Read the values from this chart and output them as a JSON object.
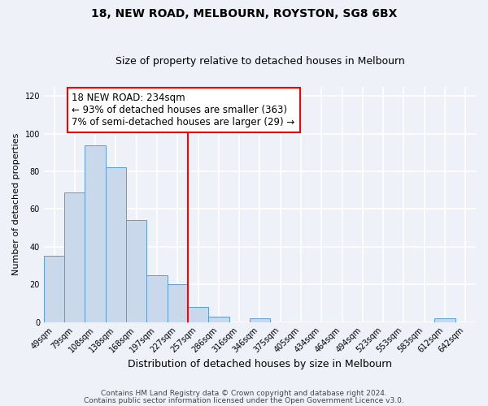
{
  "title": "18, NEW ROAD, MELBOURN, ROYSTON, SG8 6BX",
  "subtitle": "Size of property relative to detached houses in Melbourn",
  "xlabel": "Distribution of detached houses by size in Melbourn",
  "ylabel": "Number of detached properties",
  "bar_labels": [
    "49sqm",
    "79sqm",
    "108sqm",
    "138sqm",
    "168sqm",
    "197sqm",
    "227sqm",
    "257sqm",
    "286sqm",
    "316sqm",
    "346sqm",
    "375sqm",
    "405sqm",
    "434sqm",
    "464sqm",
    "494sqm",
    "523sqm",
    "553sqm",
    "583sqm",
    "612sqm",
    "642sqm"
  ],
  "bar_values": [
    35,
    69,
    94,
    82,
    54,
    25,
    20,
    8,
    3,
    0,
    2,
    0,
    0,
    0,
    0,
    0,
    0,
    0,
    0,
    2,
    0
  ],
  "bar_color": "#c9d9eb",
  "bar_edge_color": "#5b9bd5",
  "ylim": [
    0,
    125
  ],
  "yticks": [
    0,
    20,
    40,
    60,
    80,
    100,
    120
  ],
  "vline_index": 6,
  "vline_color": "red",
  "annotation_title": "18 NEW ROAD: 234sqm",
  "annotation_line1": "← 93% of detached houses are smaller (363)",
  "annotation_line2": "7% of semi-detached houses are larger (29) →",
  "annotation_box_color": "white",
  "annotation_box_edge_color": "red",
  "footnote1": "Contains HM Land Registry data © Crown copyright and database right 2024.",
  "footnote2": "Contains public sector information licensed under the Open Government Licence v3.0.",
  "background_color": "#eef2f8",
  "grid_color": "white",
  "title_fontsize": 10,
  "subtitle_fontsize": 9,
  "xlabel_fontsize": 9,
  "ylabel_fontsize": 8,
  "tick_fontsize": 7,
  "annotation_title_fontsize": 9,
  "annotation_text_fontsize": 8.5,
  "footnote_fontsize": 6.5
}
